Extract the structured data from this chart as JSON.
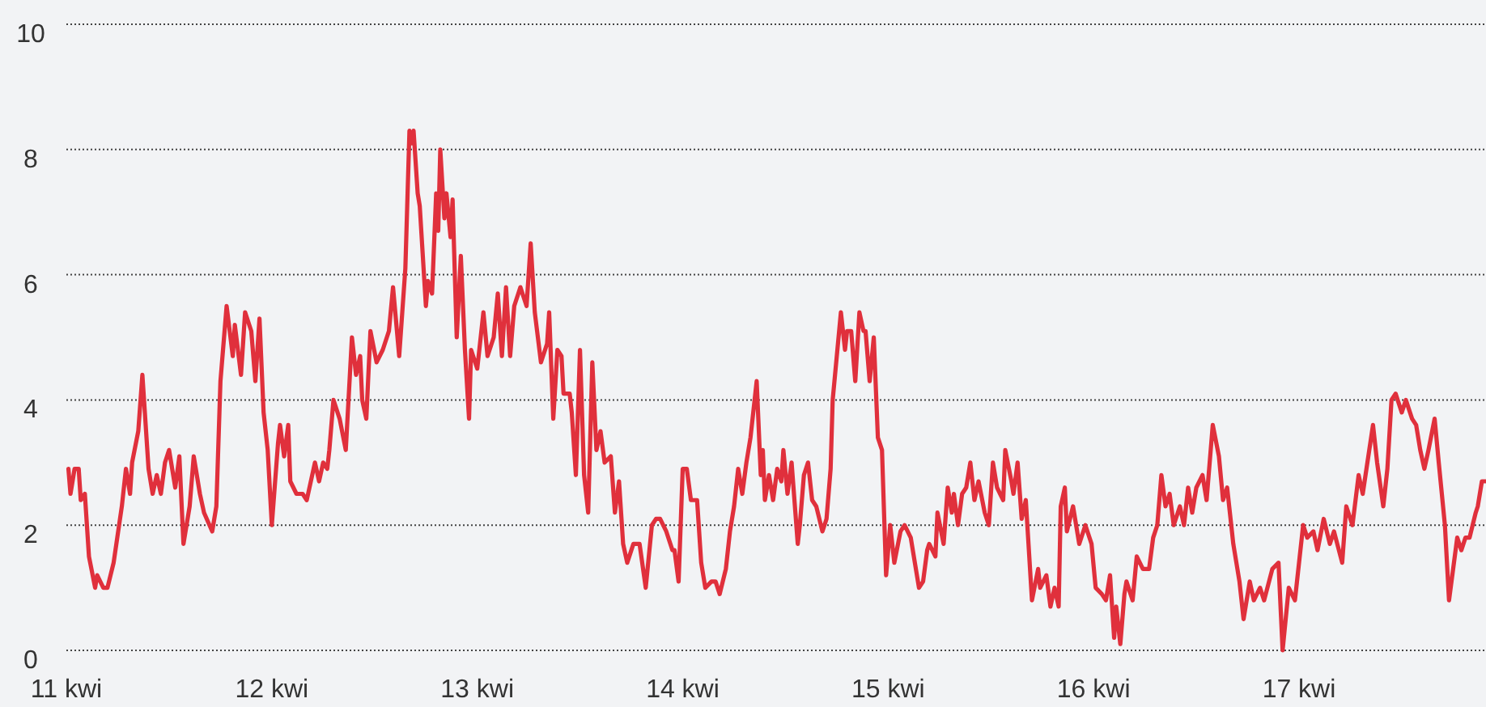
{
  "chart_data": {
    "type": "line",
    "xlim": [
      11,
      17.91
    ],
    "ylim": [
      0,
      10
    ],
    "yticks": [
      0,
      2,
      4,
      6,
      8,
      10
    ],
    "xticks": [
      {
        "value": 11,
        "label": "11 kwi"
      },
      {
        "value": 12,
        "label": "12 kwi"
      },
      {
        "value": 13,
        "label": "13 kwi"
      },
      {
        "value": 14,
        "label": "14 kwi"
      },
      {
        "value": 15,
        "label": "15 kwi"
      },
      {
        "value": 16,
        "label": "16 kwi"
      },
      {
        "value": 17,
        "label": "17 kwi"
      }
    ],
    "grid": "y",
    "series": [
      {
        "color": "#e0303c",
        "x": [
          11.01,
          11.02,
          11.04,
          11.06,
          11.07,
          11.09,
          11.11,
          11.14,
          11.15,
          11.18,
          11.2,
          11.23,
          11.27,
          11.29,
          11.31,
          11.32,
          11.35,
          11.37,
          11.4,
          11.42,
          11.44,
          11.46,
          11.48,
          11.5,
          11.53,
          11.55,
          11.57,
          11.6,
          11.62,
          11.65,
          11.67,
          11.71,
          11.73,
          11.75,
          11.78,
          11.81,
          11.82,
          11.85,
          11.87,
          11.9,
          11.92,
          11.94,
          11.96,
          11.98,
          12.0,
          12.03,
          12.04,
          12.06,
          12.08,
          12.09,
          12.12,
          12.15,
          12.17,
          12.21,
          12.23,
          12.25,
          12.27,
          12.28,
          12.3,
          12.33,
          12.36,
          12.39,
          12.41,
          12.43,
          12.44,
          12.46,
          12.48,
          12.51,
          12.54,
          12.57,
          12.59,
          12.62,
          12.65,
          12.67,
          12.68,
          12.69,
          12.71,
          12.72,
          12.75,
          12.76,
          12.78,
          12.8,
          12.81,
          12.82,
          12.84,
          12.85,
          12.87,
          12.88,
          12.9,
          12.92,
          12.94,
          12.96,
          12.97,
          13.0,
          13.03,
          13.05,
          13.08,
          13.1,
          13.12,
          13.14,
          13.16,
          13.18,
          13.21,
          13.24,
          13.26,
          13.28,
          13.31,
          13.34,
          13.35,
          13.37,
          13.39,
          13.41,
          13.42,
          13.45,
          13.46,
          13.48,
          13.5,
          13.52,
          13.54,
          13.56,
          13.58,
          13.6,
          13.62,
          13.65,
          13.67,
          13.69,
          13.71,
          13.73,
          13.76,
          13.79,
          13.82,
          13.85,
          13.87,
          13.89,
          13.92,
          13.95,
          13.96,
          13.98,
          14.0,
          14.02,
          14.04,
          14.07,
          14.09,
          14.11,
          14.14,
          14.16,
          14.18,
          14.21,
          14.23,
          14.25,
          14.27,
          14.29,
          14.31,
          14.33,
          14.36,
          14.38,
          14.39,
          14.4,
          14.42,
          14.44,
          14.46,
          14.48,
          14.49,
          14.51,
          14.53,
          14.56,
          14.57,
          14.59,
          14.61,
          14.63,
          14.65,
          14.68,
          14.7,
          14.72,
          14.73,
          14.77,
          14.79,
          14.8,
          14.82,
          14.84,
          14.86,
          14.88,
          14.89,
          14.91,
          14.93,
          14.95,
          14.97,
          14.99,
          15.01,
          15.03,
          15.06,
          15.08,
          15.11,
          15.13,
          15.15,
          15.17,
          15.19,
          15.2,
          15.23,
          15.24,
          15.27,
          15.29,
          15.31,
          15.32,
          15.34,
          15.36,
          15.38,
          15.4,
          15.42,
          15.44,
          15.47,
          15.49,
          15.51,
          15.53,
          15.56,
          15.57,
          15.6,
          15.61,
          15.63,
          15.65,
          15.67,
          15.7,
          15.73,
          15.74,
          15.77,
          15.79,
          15.81,
          15.83,
          15.84,
          15.86,
          15.87,
          15.9,
          15.93,
          15.95,
          15.96,
          15.99,
          16.01,
          16.04,
          16.06,
          16.08,
          16.1,
          16.11,
          16.13,
          16.15,
          16.16,
          16.19,
          16.21,
          16.24,
          16.27,
          16.29,
          16.31,
          16.33,
          16.35,
          16.37,
          16.39,
          16.42,
          16.44,
          16.46,
          16.48,
          16.5,
          16.53,
          16.55,
          16.58,
          16.61,
          16.63,
          16.65,
          16.68,
          16.71,
          16.73,
          16.76,
          16.78,
          16.81,
          16.83,
          16.87,
          16.9,
          16.92,
          16.95,
          16.98,
          16.99,
          17.02,
          17.04,
          17.07,
          17.09,
          17.12,
          17.15,
          17.17,
          17.21,
          17.23,
          17.26,
          17.29,
          17.31,
          17.36,
          17.38,
          17.41,
          17.43,
          17.45,
          17.47,
          17.5,
          17.52,
          17.55,
          17.57,
          17.59,
          17.61,
          17.63,
          17.66,
          17.68,
          17.71,
          17.73,
          17.75,
          17.77,
          17.79,
          17.81,
          17.83,
          17.86,
          17.87,
          17.89,
          17.91
        ],
        "values": [
          2.9,
          2.5,
          2.9,
          2.9,
          2.4,
          2.5,
          1.5,
          1.0,
          1.2,
          1.0,
          1.0,
          1.4,
          2.3,
          2.9,
          2.5,
          3.0,
          3.5,
          4.4,
          2.9,
          2.5,
          2.8,
          2.5,
          3.0,
          3.2,
          2.6,
          3.1,
          1.7,
          2.3,
          3.1,
          2.5,
          2.2,
          1.9,
          2.3,
          4.3,
          5.5,
          4.7,
          5.2,
          4.4,
          5.4,
          5.1,
          4.3,
          5.3,
          3.8,
          3.2,
          2.0,
          3.3,
          3.6,
          3.1,
          3.6,
          2.7,
          2.5,
          2.5,
          2.4,
          3.0,
          2.7,
          3.0,
          2.9,
          3.2,
          4.0,
          3.7,
          3.2,
          5.0,
          4.4,
          4.7,
          4.0,
          3.7,
          5.1,
          4.6,
          4.8,
          5.1,
          5.8,
          4.7,
          6.1,
          8.3,
          8.1,
          8.3,
          7.3,
          7.1,
          5.5,
          5.9,
          5.7,
          7.3,
          6.7,
          8.0,
          6.9,
          7.3,
          6.6,
          7.2,
          5.0,
          6.3,
          4.8,
          3.7,
          4.8,
          4.5,
          5.4,
          4.7,
          5.0,
          5.7,
          4.7,
          5.8,
          4.7,
          5.5,
          5.8,
          5.5,
          6.5,
          5.4,
          4.6,
          4.9,
          5.4,
          3.7,
          4.8,
          4.7,
          4.1,
          4.1,
          3.8,
          2.8,
          4.8,
          2.8,
          2.2,
          4.6,
          3.2,
          3.5,
          3.0,
          3.1,
          2.2,
          2.7,
          1.7,
          1.4,
          1.7,
          1.7,
          1.0,
          2.0,
          2.1,
          2.1,
          1.9,
          1.6,
          1.6,
          1.1,
          2.9,
          2.9,
          2.4,
          2.4,
          1.4,
          1.0,
          1.1,
          1.1,
          0.9,
          1.3,
          1.9,
          2.3,
          2.9,
          2.5,
          3.0,
          3.4,
          4.3,
          2.8,
          3.2,
          2.4,
          2.8,
          2.4,
          2.9,
          2.7,
          3.2,
          2.5,
          3.0,
          1.7,
          2.0,
          2.8,
          3.0,
          2.4,
          2.3,
          1.9,
          2.1,
          2.9,
          4.0,
          5.4,
          4.8,
          5.1,
          5.1,
          4.3,
          5.4,
          5.1,
          5.1,
          4.3,
          5.0,
          3.4,
          3.2,
          1.2,
          2.0,
          1.4,
          1.9,
          2.0,
          1.8,
          1.4,
          1.0,
          1.1,
          1.6,
          1.7,
          1.5,
          2.2,
          1.7,
          2.6,
          2.2,
          2.5,
          2.0,
          2.5,
          2.6,
          3.0,
          2.4,
          2.7,
          2.2,
          2.0,
          3.0,
          2.6,
          2.4,
          3.2,
          2.7,
          2.5,
          3.0,
          2.1,
          2.4,
          0.8,
          1.3,
          1.0,
          1.2,
          0.7,
          1.0,
          0.7,
          2.3,
          2.6,
          1.9,
          2.3,
          1.7,
          1.9,
          2.0,
          1.7,
          1.0,
          0.9,
          0.8,
          1.2,
          0.2,
          0.7,
          0.1,
          0.9,
          1.1,
          0.8,
          1.5,
          1.3,
          1.3,
          1.8,
          2.0,
          2.8,
          2.3,
          2.5,
          2.0,
          2.3,
          2.0,
          2.6,
          2.2,
          2.6,
          2.8,
          2.4,
          3.6,
          3.1,
          2.4,
          2.6,
          1.7,
          1.1,
          0.5,
          1.1,
          0.8,
          1.0,
          0.8,
          1.3,
          1.4,
          0.0,
          1.0,
          0.8,
          1.1,
          2.0,
          1.8,
          1.9,
          1.6,
          2.1,
          1.7,
          1.9,
          1.4,
          2.3,
          2.0,
          2.8,
          2.5,
          3.6,
          3.0,
          2.3,
          2.9,
          4.0,
          4.1,
          3.8,
          4.0,
          3.7,
          3.6,
          3.2,
          2.9,
          3.2,
          3.7,
          3.0,
          2.0,
          0.8,
          1.3,
          1.8,
          1.6,
          1.8,
          1.8,
          2.2,
          2.3,
          2.7,
          2.7
        ]
      }
    ]
  }
}
